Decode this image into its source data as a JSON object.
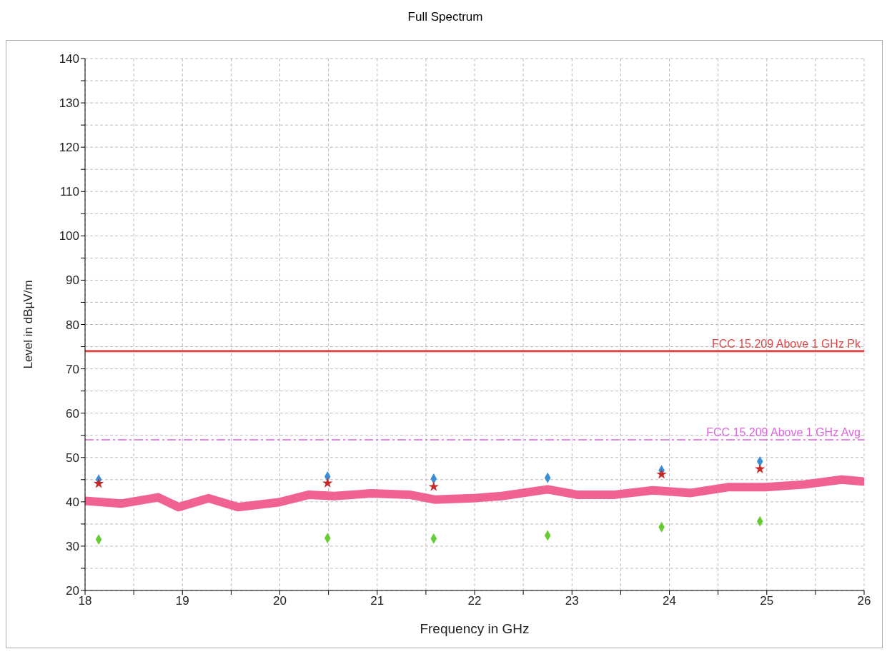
{
  "chart_data": {
    "type": "line",
    "title": "Full Spectrum",
    "xlabel": "Frequency in GHz",
    "ylabel": "Level in dBµV/m",
    "xlim": [
      18,
      26
    ],
    "ylim": [
      20,
      140
    ],
    "xticks": [
      18,
      {
        "value": 18.5,
        "label": null
      },
      19,
      {
        "value": 19.5,
        "label": null
      },
      20,
      {
        "value": 20.5,
        "label": null
      },
      21,
      {
        "value": 21.5,
        "label": null
      },
      22,
      {
        "value": 22.5,
        "label": null
      },
      23,
      {
        "value": 23.5,
        "label": null
      },
      24,
      {
        "value": 24.5,
        "label": null
      },
      25,
      {
        "value": 25.5,
        "label": null
      },
      26
    ],
    "yticks": [
      20,
      {
        "value": 25,
        "label": null
      },
      30,
      {
        "value": 35,
        "label": null
      },
      40,
      {
        "value": 45,
        "label": null
      },
      50,
      {
        "value": 55,
        "label": null
      },
      60,
      {
        "value": 65,
        "label": null
      },
      70,
      {
        "value": 75,
        "label": null
      },
      80,
      {
        "value": 85,
        "label": null
      },
      90,
      {
        "value": 95,
        "label": null
      },
      100,
      {
        "value": 105,
        "label": null
      },
      110,
      {
        "value": 115,
        "label": null
      },
      120,
      {
        "value": 125,
        "label": null
      },
      130,
      {
        "value": 135,
        "label": null
      },
      140
    ],
    "grid": true,
    "legend": false,
    "series": [
      {
        "color": "#f06292",
        "marker": "none",
        "line_style": "solid",
        "x": [
          18,
          18.37,
          18.75,
          18.96,
          19.27,
          19.57,
          19.99,
          20.3,
          20.56,
          20.94,
          21.33,
          21.59,
          21.98,
          22.28,
          22.75,
          23.05,
          23.44,
          23.83,
          24.22,
          24.6,
          24.99,
          25.38,
          25.77,
          25.98
        ],
        "values": [
          40.2,
          39.6,
          41.0,
          38.8,
          40.8,
          38.8,
          39.9,
          41.6,
          41.3,
          41.9,
          41.6,
          40.5,
          40.8,
          41.3,
          42.8,
          41.6,
          41.6,
          42.6,
          42.0,
          43.3,
          43.3,
          43.9,
          45.0,
          44.6
        ]
      },
      {
        "type": "scatter",
        "color": "#3b8fd6",
        "marker": "diamond",
        "x": [
          18.14,
          20.49,
          21.58,
          22.75,
          23.92,
          24.93
        ],
        "values": [
          45.0,
          45.7,
          45.2,
          45.4,
          47.1,
          49.1
        ]
      },
      {
        "type": "scatter",
        "color": "#c62828",
        "marker": "star",
        "x": [
          18.14,
          20.49,
          21.58,
          22.75,
          23.92,
          24.93
        ],
        "values": [
          44.1,
          44.2,
          43.4,
          null,
          46.2,
          47.4
        ]
      },
      {
        "type": "scatter",
        "color": "#66cc33",
        "marker": "diamond",
        "x": [
          18.14,
          20.49,
          21.58,
          22.75,
          23.92,
          24.93
        ],
        "values": [
          31.5,
          31.8,
          31.7,
          32.4,
          34.3,
          35.6
        ]
      }
    ],
    "ref_lines": [
      {
        "axis": "y",
        "value": 74,
        "label": "FCC 15.209 Above 1 GHz Pk",
        "color": "#e04848",
        "line_style": "solid"
      },
      {
        "axis": "y",
        "value": 54,
        "label": "FCC 15.209 Above 1 GHz Avg",
        "color": "#dd66dd",
        "line_style": "dashed"
      }
    ]
  }
}
